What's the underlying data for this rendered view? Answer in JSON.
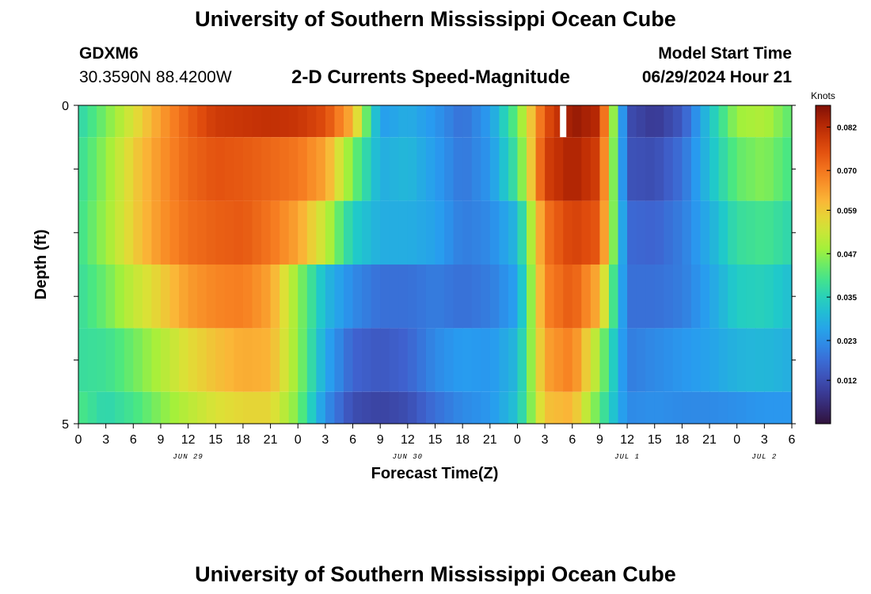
{
  "header": {
    "title": "University of Southern Mississippi Ocean Cube",
    "station_id": "GDXM6",
    "coordinates": "30.3590N  88.4200W",
    "subtitle": "2-D Currents Speed-Magnitude",
    "model_start_label": "Model Start Time",
    "model_start_time": "06/29/2024 Hour 21"
  },
  "footer": {
    "title": "University of Southern Mississippi Ocean Cube"
  },
  "chart_data": {
    "type": "heatmap",
    "title": "2-D Currents Speed-Magnitude",
    "xlabel": "Forecast Time(Z)",
    "ylabel": "Depth (ft)",
    "x_tick_labels": [
      "0",
      "3",
      "6",
      "9",
      "12",
      "15",
      "18",
      "21",
      "0",
      "3",
      "6",
      "9",
      "12",
      "15",
      "18",
      "21",
      "0",
      "3",
      "6",
      "9",
      "12",
      "15",
      "18",
      "21",
      "0",
      "3",
      "6"
    ],
    "date_labels": [
      {
        "text": "JUN 29",
        "tick_index": 4
      },
      {
        "text": "JUN 30",
        "tick_index": 12
      },
      {
        "text": "JUL 1",
        "tick_index": 20
      },
      {
        "text": "JUL 2",
        "tick_index": 25
      }
    ],
    "y_tick_labels": [
      "0",
      "5"
    ],
    "ylim": [
      0,
      5
    ],
    "x_hours_range": [
      0,
      78
    ],
    "colorbar": {
      "label": "Knots",
      "ticks": [
        "0.082",
        "0.070",
        "0.059",
        "0.047",
        "0.035",
        "0.023",
        "0.012"
      ],
      "range": [
        0,
        0.088
      ]
    },
    "depth_layers": [
      {
        "depth_range": [
          0,
          0.5
        ],
        "knots": [
          0.036,
          0.045,
          0.055,
          0.065,
          0.073,
          0.079,
          0.08,
          0.081,
          0.08,
          0.076,
          0.062,
          0.025,
          0.028,
          0.024,
          0.018,
          0.025,
          0.044,
          0.075,
          0.086,
          0.082,
          0.012,
          0.008,
          0.014,
          0.032,
          0.048,
          0.05,
          0.042
        ]
      },
      {
        "depth_range": [
          0.5,
          1.5
        ],
        "knots": [
          0.038,
          0.047,
          0.058,
          0.066,
          0.072,
          0.075,
          0.074,
          0.072,
          0.07,
          0.064,
          0.045,
          0.028,
          0.03,
          0.025,
          0.019,
          0.024,
          0.04,
          0.078,
          0.084,
          0.078,
          0.013,
          0.012,
          0.018,
          0.031,
          0.043,
          0.046,
          0.04
        ]
      },
      {
        "depth_range": [
          1.5,
          2.5
        ],
        "knots": [
          0.039,
          0.048,
          0.058,
          0.066,
          0.071,
          0.073,
          0.074,
          0.07,
          0.064,
          0.052,
          0.034,
          0.028,
          0.028,
          0.026,
          0.02,
          0.022,
          0.03,
          0.07,
          0.078,
          0.074,
          0.017,
          0.016,
          0.02,
          0.028,
          0.038,
          0.04,
          0.036
        ]
      },
      {
        "depth_range": [
          2.5,
          3.5
        ],
        "knots": [
          0.038,
          0.044,
          0.052,
          0.058,
          0.065,
          0.068,
          0.069,
          0.064,
          0.047,
          0.03,
          0.022,
          0.018,
          0.018,
          0.02,
          0.018,
          0.02,
          0.026,
          0.068,
          0.074,
          0.062,
          0.018,
          0.018,
          0.02,
          0.026,
          0.034,
          0.035,
          0.031
        ]
      },
      {
        "depth_range": [
          3.5,
          4.5
        ],
        "knots": [
          0.038,
          0.039,
          0.044,
          0.05,
          0.056,
          0.06,
          0.063,
          0.062,
          0.047,
          0.027,
          0.016,
          0.014,
          0.016,
          0.022,
          0.025,
          0.024,
          0.03,
          0.064,
          0.069,
          0.048,
          0.02,
          0.022,
          0.024,
          0.026,
          0.029,
          0.03,
          0.028
        ]
      },
      {
        "depth_range": [
          4.5,
          5
        ],
        "knots": [
          0.041,
          0.036,
          0.04,
          0.046,
          0.051,
          0.055,
          0.057,
          0.057,
          0.045,
          0.023,
          0.012,
          0.01,
          0.012,
          0.018,
          0.022,
          0.024,
          0.032,
          0.06,
          0.062,
          0.042,
          0.022,
          0.023,
          0.022,
          0.022,
          0.023,
          0.024,
          0.024
        ]
      }
    ],
    "missing_cells": [
      {
        "depth_range": [
          0,
          0.5
        ],
        "hours": 53
      }
    ]
  }
}
